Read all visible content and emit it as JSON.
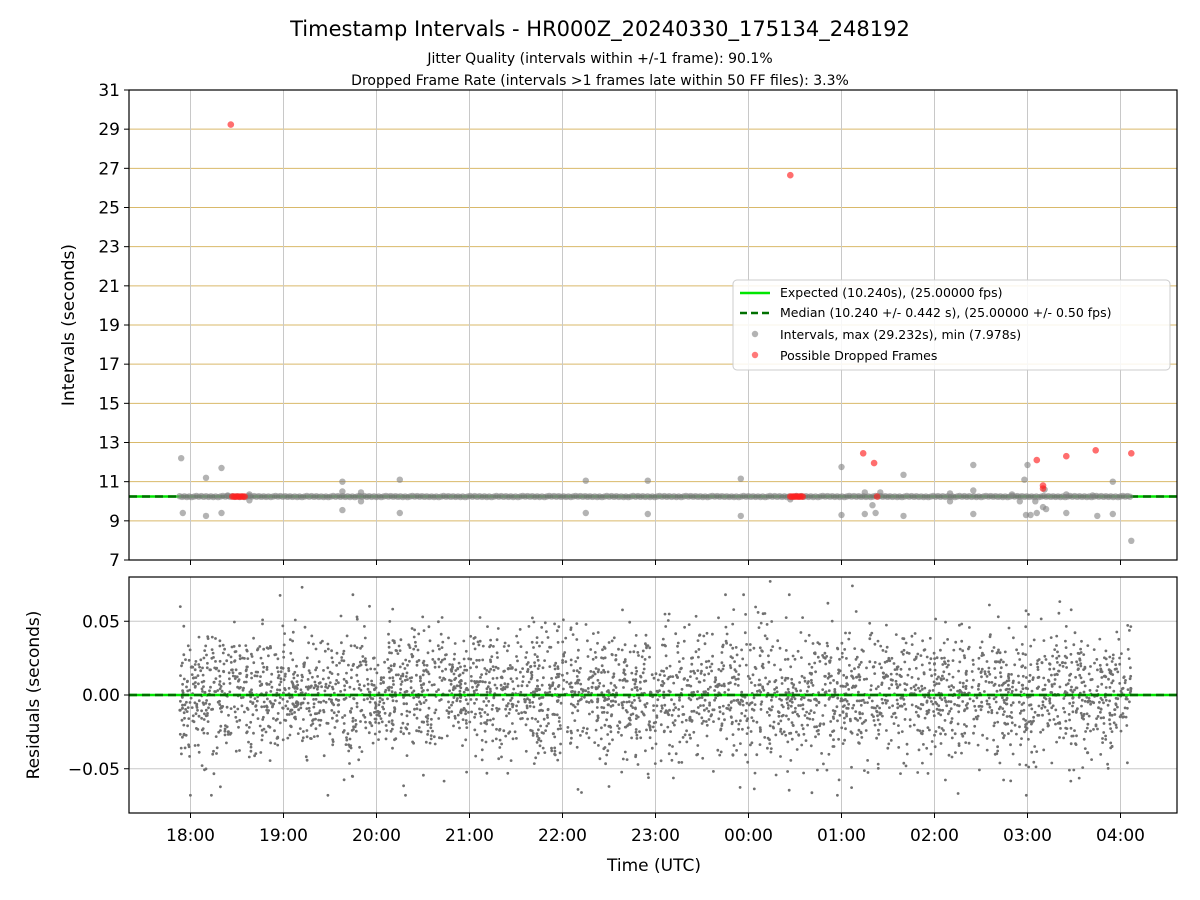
{
  "figure": {
    "title": "Timestamp Intervals - HR000Z_20240330_175134_248192",
    "subtitle_1": "Jitter Quality (intervals within +/-1 frame): 90.1%",
    "subtitle_2": "Dropped Frame Rate (intervals >1 frames late within 50 FF files): 3.3%"
  },
  "chart_data": [
    {
      "type": "scatter",
      "panel": "intervals",
      "ylabel": "Intervals (seconds)",
      "xlabel": "",
      "ylim": [
        7,
        31
      ],
      "y_ticks": [
        "7",
        "9",
        "11",
        "13",
        "15",
        "17",
        "19",
        "21",
        "23",
        "25",
        "27",
        "29",
        "31"
      ],
      "x_ticks": [
        "18:00",
        "19:00",
        "20:00",
        "21:00",
        "22:00",
        "23:00",
        "00:00",
        "01:00",
        "02:00",
        "03:00",
        "04:00"
      ],
      "grid": true,
      "legend_position": "center-right",
      "colors": {
        "expected": "#00e600",
        "median": "#007000",
        "intervals": "#808080",
        "dropped": "#ff2020",
        "hgrid": "#d9b96a",
        "vgrid": "#c8c8c8"
      },
      "lines": [
        {
          "name": "Expected (10.240s), (25.00000 fps)",
          "y": 10.24,
          "style": "solid"
        },
        {
          "name": "Median (10.240 +/- 0.442 s), (25.00000 +/- 0.50 fps)",
          "y": 10.24,
          "style": "dashed"
        }
      ],
      "series": [
        {
          "name": "Intervals, max (29.232s), min (7.978s)",
          "baseline_y": 10.24,
          "baseline_x_range": [
            "17:53",
            "04:07"
          ],
          "points": [
            {
              "x": "17:54",
              "y": 12.2
            },
            {
              "x": "17:55",
              "y": 9.4
            },
            {
              "x": "18:10",
              "y": 11.2
            },
            {
              "x": "18:10",
              "y": 9.25
            },
            {
              "x": "18:20",
              "y": 11.7
            },
            {
              "x": "18:20",
              "y": 9.4
            },
            {
              "x": "18:38",
              "y": 10.35
            },
            {
              "x": "19:38",
              "y": 11.0
            },
            {
              "x": "19:38",
              "y": 9.55
            },
            {
              "x": "19:38",
              "y": 10.5
            },
            {
              "x": "19:50",
              "y": 10.45
            },
            {
              "x": "19:50",
              "y": 10.0
            },
            {
              "x": "20:15",
              "y": 11.1
            },
            {
              "x": "20:15",
              "y": 9.4
            },
            {
              "x": "22:15",
              "y": 11.05
            },
            {
              "x": "22:15",
              "y": 9.4
            },
            {
              "x": "22:55",
              "y": 11.05
            },
            {
              "x": "22:55",
              "y": 9.35
            },
            {
              "x": "23:55",
              "y": 11.15
            },
            {
              "x": "23:55",
              "y": 9.25
            },
            {
              "x": "00:27",
              "y": 10.1
            },
            {
              "x": "01:00",
              "y": 11.75
            },
            {
              "x": "01:00",
              "y": 9.3
            },
            {
              "x": "01:15",
              "y": 10.45
            },
            {
              "x": "01:15",
              "y": 9.35
            },
            {
              "x": "01:20",
              "y": 9.8
            },
            {
              "x": "01:22",
              "y": 9.4
            },
            {
              "x": "01:25",
              "y": 10.45
            },
            {
              "x": "01:40",
              "y": 11.35
            },
            {
              "x": "01:40",
              "y": 9.25
            },
            {
              "x": "02:10",
              "y": 10.4
            },
            {
              "x": "02:10",
              "y": 10.0
            },
            {
              "x": "02:25",
              "y": 11.85
            },
            {
              "x": "02:25",
              "y": 10.55
            },
            {
              "x": "02:25",
              "y": 9.35
            },
            {
              "x": "02:50",
              "y": 10.35
            },
            {
              "x": "02:55",
              "y": 10.0
            },
            {
              "x": "02:58",
              "y": 11.1
            },
            {
              "x": "02:59",
              "y": 9.3
            },
            {
              "x": "03:00",
              "y": 11.85
            },
            {
              "x": "03:02",
              "y": 9.3
            },
            {
              "x": "03:05",
              "y": 10.0
            },
            {
              "x": "03:06",
              "y": 9.4
            },
            {
              "x": "03:10",
              "y": 9.7
            },
            {
              "x": "03:11",
              "y": 10.6
            },
            {
              "x": "03:12",
              "y": 9.6
            },
            {
              "x": "03:25",
              "y": 10.35
            },
            {
              "x": "03:25",
              "y": 9.4
            },
            {
              "x": "03:42",
              "y": 10.3
            },
            {
              "x": "03:45",
              "y": 9.25
            },
            {
              "x": "03:55",
              "y": 11.0
            },
            {
              "x": "03:55",
              "y": 9.35
            },
            {
              "x": "04:07",
              "y": 7.978
            },
            {
              "x": "18:24",
              "y": 10.3
            },
            {
              "x": "18:38",
              "y": 10.05
            }
          ]
        },
        {
          "name": "Possible Dropped Frames",
          "points": [
            {
              "x": "18:26",
              "y": 29.232
            },
            {
              "x": "00:27",
              "y": 26.65
            },
            {
              "x": "18:27",
              "y": 10.24
            },
            {
              "x": "18:28",
              "y": 10.24
            },
            {
              "x": "18:29",
              "y": 10.24
            },
            {
              "x": "18:30",
              "y": 10.24
            },
            {
              "x": "18:31",
              "y": 10.24
            },
            {
              "x": "18:32",
              "y": 10.24
            },
            {
              "x": "18:33",
              "y": 10.24
            },
            {
              "x": "18:34",
              "y": 10.24
            },
            {
              "x": "18:35",
              "y": 10.24
            },
            {
              "x": "00:27",
              "y": 10.24
            },
            {
              "x": "00:28",
              "y": 10.24
            },
            {
              "x": "00:29",
              "y": 10.24
            },
            {
              "x": "00:30",
              "y": 10.24
            },
            {
              "x": "00:31",
              "y": 10.24
            },
            {
              "x": "00:32",
              "y": 10.24
            },
            {
              "x": "00:33",
              "y": 10.24
            },
            {
              "x": "00:34",
              "y": 10.24
            },
            {
              "x": "00:35",
              "y": 10.24
            },
            {
              "x": "01:14",
              "y": 12.45
            },
            {
              "x": "01:21",
              "y": 11.95
            },
            {
              "x": "01:23",
              "y": 10.24
            },
            {
              "x": "03:06",
              "y": 12.1
            },
            {
              "x": "03:10",
              "y": 10.8
            },
            {
              "x": "03:10",
              "y": 10.65
            },
            {
              "x": "03:25",
              "y": 12.3
            },
            {
              "x": "03:44",
              "y": 12.6
            },
            {
              "x": "04:07",
              "y": 12.45
            }
          ]
        }
      ]
    },
    {
      "type": "scatter",
      "panel": "residuals",
      "ylabel": "Residuals (seconds)",
      "xlabel": "Time (UTC)",
      "ylim": [
        -0.08,
        0.08
      ],
      "y_ticks": [
        "−0.05",
        "0.00",
        "0.05"
      ],
      "x_ticks": [
        "18:00",
        "19:00",
        "20:00",
        "21:00",
        "22:00",
        "23:00",
        "00:00",
        "01:00",
        "02:00",
        "03:00",
        "04:00"
      ],
      "grid": true,
      "colors": {
        "points": "#707070",
        "zero_line": "#00e600",
        "zero_dash": "#007000",
        "grid": "#c8c8c8"
      },
      "x_range": [
        "17:53",
        "04:07"
      ],
      "spread_sd": 0.022,
      "point_count": 3600,
      "extreme_points": [
        {
          "x": "19:12",
          "y": 0.073
        },
        {
          "x": "00:14",
          "y": 0.077
        },
        {
          "x": "01:07",
          "y": 0.074
        },
        {
          "x": "22:10",
          "y": -0.064
        },
        {
          "x": "22:30",
          "y": -0.062
        },
        {
          "x": "17:54",
          "y": -0.036
        }
      ]
    }
  ]
}
